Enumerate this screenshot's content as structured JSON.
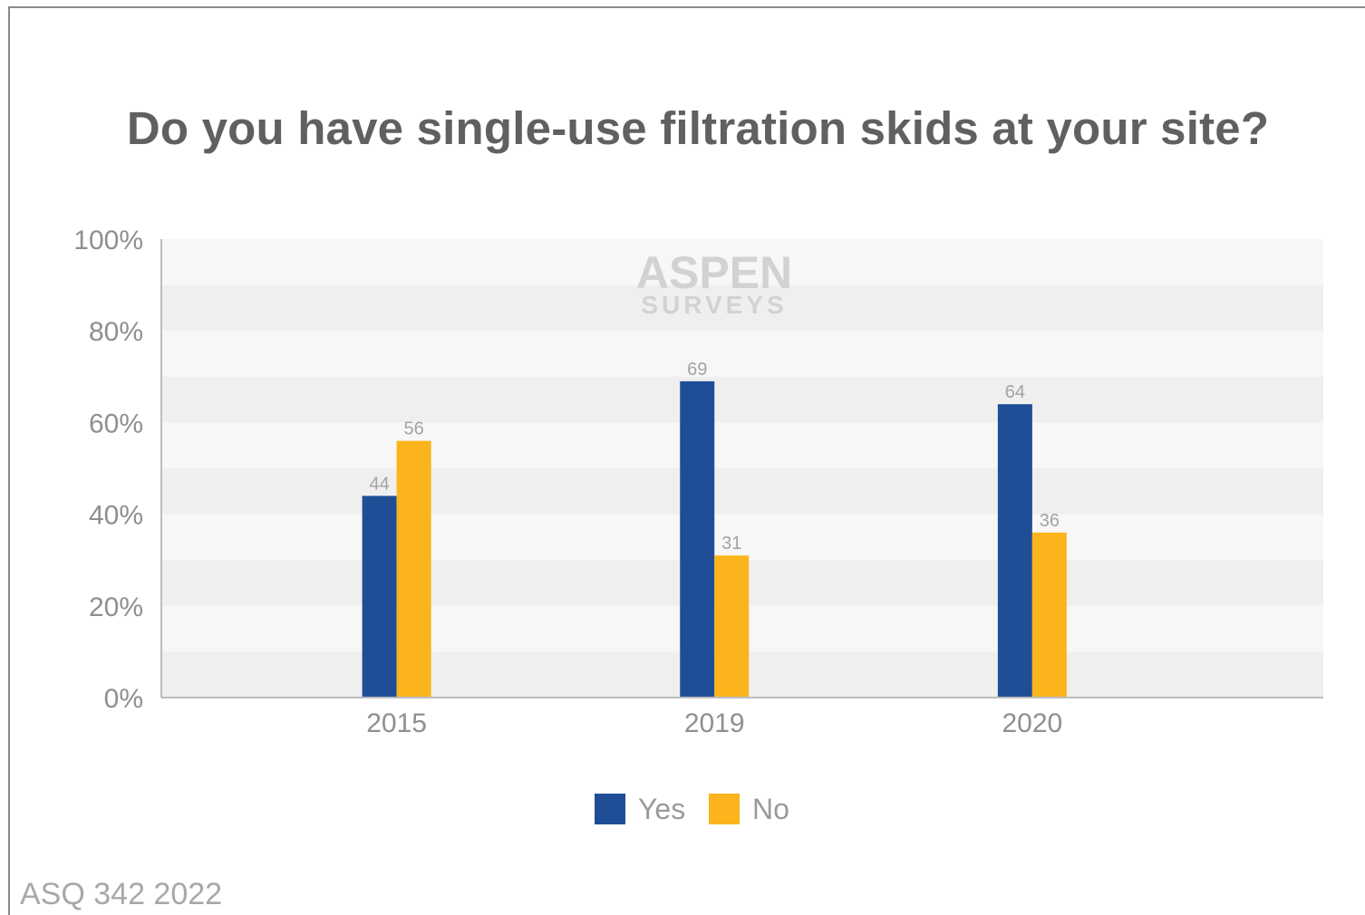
{
  "chart_data": {
    "type": "bar",
    "title": "Do you have single-use filtration skids at your site?",
    "categories": [
      "2015",
      "2019",
      "2020"
    ],
    "series": [
      {
        "name": "Yes",
        "values": [
          44,
          69,
          64
        ],
        "color": "#1f4e96"
      },
      {
        "name": "No",
        "values": [
          56,
          31,
          36
        ],
        "color": "#fbb41c"
      }
    ],
    "y_ticks": [
      "0%",
      "20%",
      "40%",
      "60%",
      "80%",
      "100%"
    ],
    "ylim": [
      0,
      100
    ],
    "xlabel": "",
    "ylabel": "",
    "grid": "alternating horizontal bands",
    "legend_position": "bottom-center",
    "watermark": {
      "line1": "ASPEN",
      "line2": "SURVEYS"
    }
  },
  "footer": {
    "source": "ASQ 342 2022"
  }
}
